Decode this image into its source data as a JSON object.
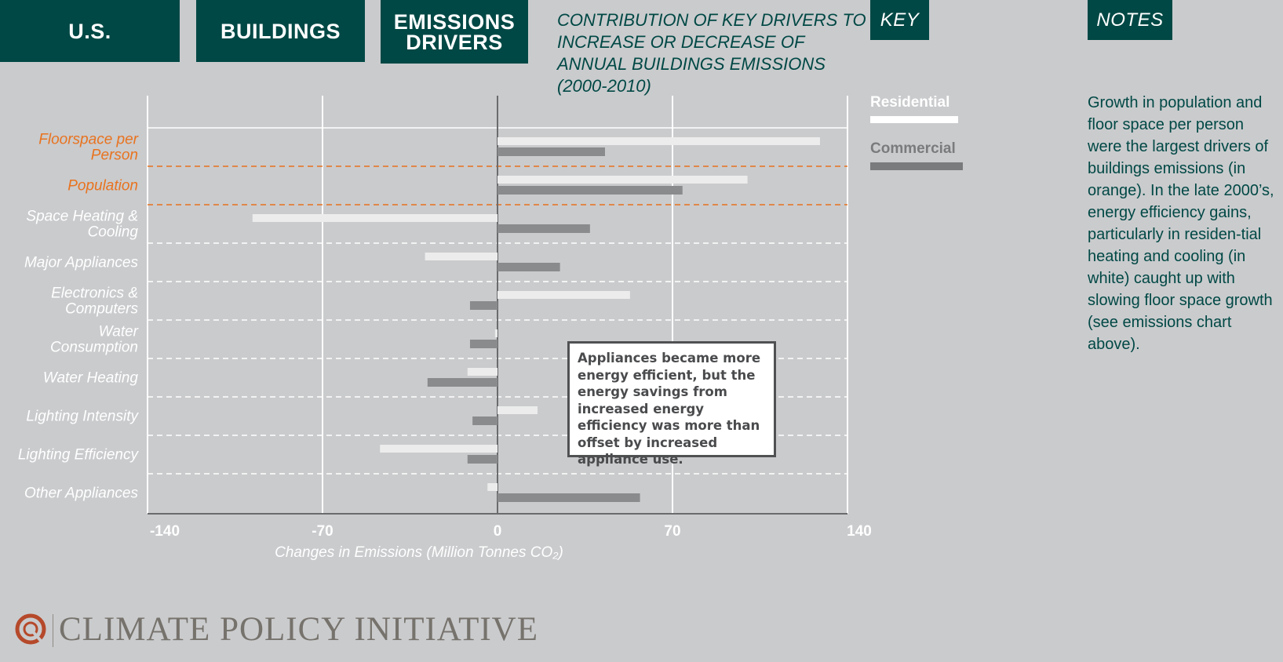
{
  "tabs": {
    "us": "U.S.",
    "buildings": "BUILDINGS",
    "drivers_line1": "EMISSIONS",
    "drivers_line2": "DRIVERS"
  },
  "title": "CONTRIBUTION OF KEY DRIVERS TO INCREASE OR DECREASE OF ANNUAL BUILDINGS EMISSIONS (2000-2010)",
  "key": {
    "label": "KEY",
    "residential": "Residential",
    "commercial": "Commercial"
  },
  "notes": {
    "label": "NOTES",
    "text": "Growth in population and floor space per person were the largest drivers of buildings emissions (in orange). In the late 2000’s, energy efficiency gains, particularly in residen-tial heating and cooling (in white) caught up with slowing floor space growth (see emissions chart above)."
  },
  "callout": "Appliances became more energy efficient, but the energy savings from increased energy efficiency was more than offset by increased appliance use.",
  "footer": {
    "org": "CLIMATE POLICY INITIATIVE"
  },
  "colors": {
    "brand": "#004845",
    "highlight": "#e8731f",
    "residential": "#ececec",
    "commercial": "#8a8b8d",
    "background": "#cacbcd"
  },
  "chart_data": {
    "type": "bar",
    "orientation": "horizontal",
    "categories": [
      "Floorspace per Person",
      "Population",
      "Space Heating & Cooling",
      "Major Appliances",
      "Electronics & Computers",
      "Water Consumption",
      "Water Heating",
      "Lighting Intensity",
      "Lighting Efficiency",
      "Other Appliances"
    ],
    "category_lines": [
      [
        "Floorspace per",
        "Person"
      ],
      [
        "Population"
      ],
      [
        "Space Heating &",
        "Cooling"
      ],
      [
        "Major Appliances"
      ],
      [
        "Electronics &",
        "Computers"
      ],
      [
        "Water",
        "Consumption"
      ],
      [
        "Water Heating"
      ],
      [
        "Lighting Intensity"
      ],
      [
        "Lighting Efficiency"
      ],
      [
        "Other Appliances"
      ]
    ],
    "highlighted_categories": [
      "Floorspace per Person",
      "Population"
    ],
    "series": [
      {
        "name": "Residential",
        "values": [
          129,
          100,
          -98,
          -29,
          53,
          -1,
          -12,
          16,
          -47,
          -4
        ]
      },
      {
        "name": "Commercial",
        "values": [
          43,
          74,
          37,
          25,
          -11,
          -11,
          -28,
          -10,
          -12,
          57
        ]
      }
    ],
    "xlabel": "Changes in Emissions (Million Tonnes CO₂)",
    "ylabel": "",
    "xlim": [
      -140,
      140
    ],
    "xticks": [
      -140,
      -70,
      0,
      70,
      140
    ],
    "xtick_labels": [
      "-140",
      "-70",
      "0",
      "70",
      "140"
    ],
    "grid": true
  }
}
